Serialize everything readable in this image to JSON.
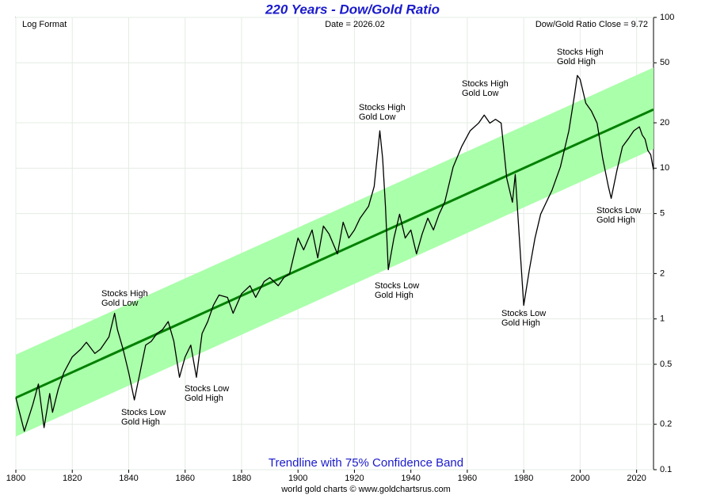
{
  "chart_data": {
    "type": "line",
    "title": "220 Years - Dow/Gold Ratio",
    "subtitle": "Trendline with 75% Confidence Band",
    "notes": [
      "Log Format",
      "Date = 2026.02",
      "Dow/Gold Ratio Close = 9.72"
    ],
    "footer": "world gold charts © www.goldchartsrus.com",
    "log_scale": true,
    "grid": true,
    "xlim": [
      1800,
      2026
    ],
    "xticks": [
      1800,
      1820,
      1840,
      1860,
      1880,
      1900,
      1920,
      1940,
      1960,
      1980,
      2000,
      2020
    ],
    "ylim": [
      0.1,
      100
    ],
    "yticks": [
      0.1,
      0.2,
      0.5,
      1,
      2,
      5,
      10,
      20,
      50,
      100
    ],
    "series": [
      {
        "name": "Dow/Gold Ratio",
        "color": "#000000",
        "x": [
          1800,
          1803,
          1806,
          1808,
          1810,
          1812,
          1813,
          1815,
          1817,
          1820,
          1823,
          1825,
          1828,
          1830,
          1833,
          1835,
          1836,
          1838,
          1840,
          1842,
          1844,
          1846,
          1848,
          1850,
          1852,
          1854,
          1856,
          1858,
          1860,
          1862,
          1864,
          1866,
          1868,
          1870,
          1872,
          1875,
          1877,
          1880,
          1883,
          1885,
          1888,
          1890,
          1893,
          1895,
          1897,
          1900,
          1902,
          1905,
          1907,
          1909,
          1911,
          1914,
          1916,
          1918,
          1920,
          1922,
          1925,
          1927,
          1929,
          1930,
          1931,
          1932,
          1934,
          1936,
          1938,
          1940,
          1942,
          1944,
          1946,
          1948,
          1950,
          1952,
          1955,
          1958,
          1961,
          1964,
          1966,
          1968,
          1970,
          1972,
          1974,
          1976,
          1977,
          1979,
          1980,
          1982,
          1984,
          1986,
          1988,
          1990,
          1993,
          1996,
          1998,
          1999,
          2000,
          2002,
          2004,
          2006,
          2008,
          2010,
          2011,
          2013,
          2015,
          2017,
          2019,
          2021,
          2022,
          2023,
          2024,
          2025,
          2026
        ],
        "values": [
          0.3,
          0.18,
          0.27,
          0.37,
          0.19,
          0.32,
          0.24,
          0.34,
          0.44,
          0.56,
          0.63,
          0.7,
          0.59,
          0.63,
          0.76,
          1.09,
          0.85,
          0.63,
          0.44,
          0.29,
          0.44,
          0.67,
          0.71,
          0.8,
          0.85,
          0.96,
          0.71,
          0.41,
          0.56,
          0.67,
          0.41,
          0.8,
          0.96,
          1.23,
          1.44,
          1.39,
          1.09,
          1.47,
          1.66,
          1.39,
          1.77,
          1.88,
          1.66,
          1.88,
          1.99,
          3.44,
          2.87,
          3.89,
          2.54,
          4.13,
          3.66,
          2.7,
          4.38,
          3.44,
          3.89,
          4.66,
          5.58,
          7.56,
          17.7,
          11.6,
          5.58,
          2.12,
          3.44,
          4.95,
          3.44,
          3.89,
          2.7,
          3.66,
          4.66,
          3.89,
          4.95,
          5.94,
          10.2,
          13.9,
          17.7,
          19.9,
          22.5,
          19.9,
          21.1,
          19.9,
          8.54,
          5.94,
          9.08,
          2.39,
          1.23,
          2.12,
          3.44,
          4.95,
          5.94,
          7.12,
          10.2,
          17.7,
          30.5,
          41.2,
          38.8,
          27.0,
          23.9,
          19.9,
          11.6,
          7.56,
          6.3,
          9.6,
          13.9,
          15.6,
          17.7,
          18.8,
          16.6,
          15.6,
          13.1,
          12.3,
          9.72
        ]
      },
      {
        "name": "Trendline",
        "color": "#008000",
        "x": [
          1800,
          2026
        ],
        "values": [
          0.3,
          24.5
        ]
      },
      {
        "name": "Upper Band",
        "color": "#aaffaa",
        "x": [
          1800,
          2026
        ],
        "values": [
          0.58,
          46.5
        ]
      },
      {
        "name": "Lower Band",
        "color": "#aaffaa",
        "x": [
          1800,
          2026
        ],
        "values": [
          0.166,
          13.4
        ]
      }
    ],
    "annotations": [
      [
        "Stocks High",
        "Gold Low"
      ],
      [
        "Stocks Low",
        "Gold High"
      ],
      [
        "Stocks Low",
        "Gold High"
      ],
      [
        "Stocks High",
        "Gold Low"
      ],
      [
        "Stocks Low",
        "Gold High"
      ],
      [
        "Stocks High",
        "Gold Low"
      ],
      [
        "Stocks Low",
        "Gold High"
      ],
      [
        "Stocks High",
        "Gold High"
      ],
      [
        "Stocks Low",
        "Gold High"
      ]
    ]
  }
}
